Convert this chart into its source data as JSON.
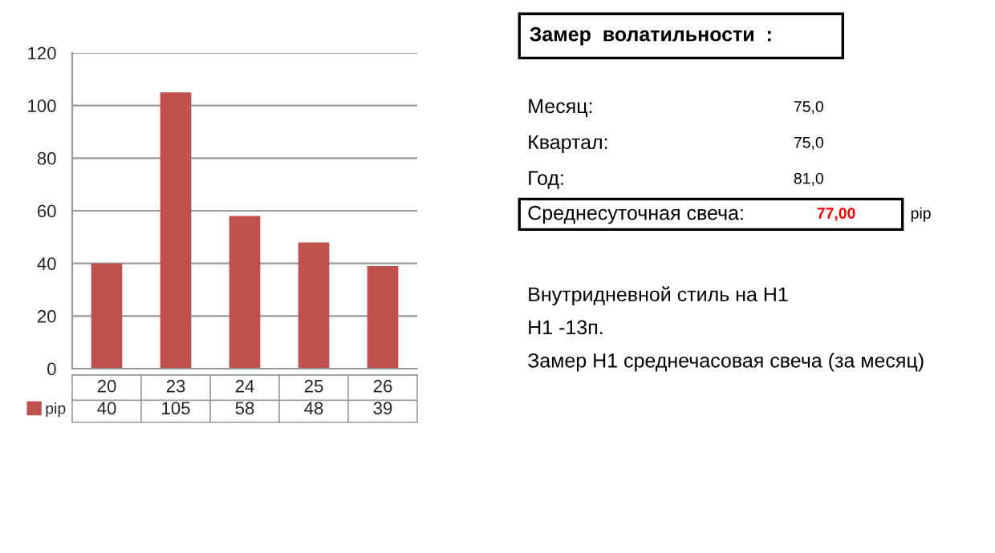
{
  "chart_data": {
    "type": "bar",
    "categories": [
      "20",
      "23",
      "24",
      "25",
      "26"
    ],
    "series": [
      {
        "name": "pip",
        "color": "#c0504d",
        "values": [
          40,
          105,
          58,
          48,
          39
        ]
      }
    ],
    "ylim": [
      0,
      120
    ],
    "yticks": [
      0,
      20,
      40,
      60,
      80,
      100,
      120
    ],
    "grid": "y",
    "data_labels": true,
    "legend": "bottom left",
    "annotations": [
      "Замер  волатильности  :",
      "Месяц:",
      "75,0",
      "Квартал:",
      "75,0",
      "Год:",
      "81,0",
      "Среднесуточная свеча:",
      "77,00",
      "pip",
      "Внутридневной стиль на H1",
      "H1 -13п.",
      "Замер H1 среднечасовая свеча (за месяц)"
    ]
  }
}
